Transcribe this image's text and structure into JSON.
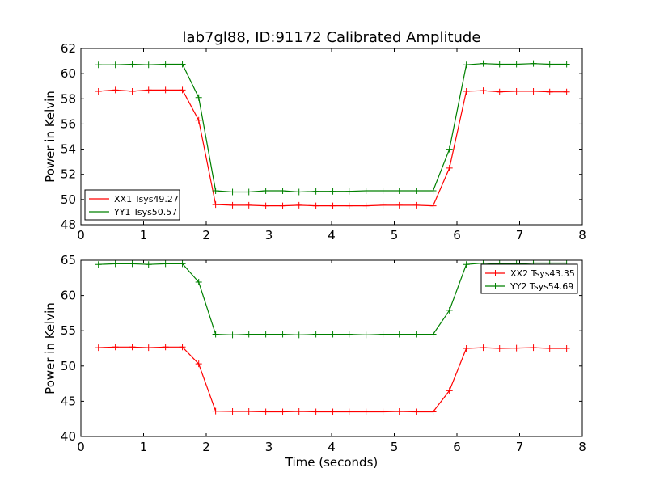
{
  "title": "lab7gl88, ID:91172 Calibrated Amplitude",
  "colors": {
    "xx": "#ff0000",
    "yy": "#008000"
  },
  "chart_data": [
    {
      "type": "line",
      "title": "lab7gl88, ID:91172 Calibrated Amplitude",
      "xlabel": "",
      "ylabel": "Power in Kelvin",
      "xlim": [
        0,
        8
      ],
      "ylim": [
        48,
        62
      ],
      "xticks": [
        0,
        1,
        2,
        3,
        4,
        5,
        6,
        7,
        8
      ],
      "yticks": [
        48,
        50,
        52,
        54,
        56,
        58,
        60,
        62
      ],
      "grid": false,
      "legend_position": "lower-left",
      "x": [
        0.28,
        0.55,
        0.82,
        1.08,
        1.35,
        1.62,
        1.88,
        2.15,
        2.42,
        2.68,
        2.95,
        3.22,
        3.48,
        3.75,
        4.02,
        4.28,
        4.55,
        4.82,
        5.08,
        5.35,
        5.62,
        5.88,
        6.15,
        6.42,
        6.68,
        6.95,
        7.22,
        7.48,
        7.75
      ],
      "series": [
        {
          "name": "XX1 Tsys49.27",
          "color": "#ff0000",
          "values": [
            58.6,
            58.7,
            58.6,
            58.7,
            58.7,
            58.7,
            56.3,
            49.6,
            49.55,
            49.55,
            49.5,
            49.5,
            49.55,
            49.5,
            49.5,
            49.5,
            49.5,
            49.55,
            49.55,
            49.55,
            49.5,
            52.5,
            58.6,
            58.65,
            58.55,
            58.6,
            58.6,
            58.55,
            58.55
          ]
        },
        {
          "name": "YY1 Tsys50.57",
          "color": "#008000",
          "values": [
            60.7,
            60.7,
            60.75,
            60.7,
            60.75,
            60.75,
            58.1,
            50.7,
            50.6,
            50.6,
            50.7,
            50.7,
            50.6,
            50.65,
            50.65,
            50.65,
            50.7,
            50.7,
            50.7,
            50.7,
            50.7,
            54.0,
            60.7,
            60.8,
            60.75,
            60.75,
            60.8,
            60.75,
            60.75
          ]
        }
      ]
    },
    {
      "type": "line",
      "title": "",
      "xlabel": "Time (seconds)",
      "ylabel": "Power in Kelvin",
      "xlim": [
        0,
        8
      ],
      "ylim": [
        40,
        65
      ],
      "xticks": [
        0,
        1,
        2,
        3,
        4,
        5,
        6,
        7,
        8
      ],
      "yticks": [
        40,
        45,
        50,
        55,
        60,
        65
      ],
      "grid": false,
      "legend_position": "upper-right",
      "x": [
        0.28,
        0.55,
        0.82,
        1.08,
        1.35,
        1.62,
        1.88,
        2.15,
        2.42,
        2.68,
        2.95,
        3.22,
        3.48,
        3.75,
        4.02,
        4.28,
        4.55,
        4.82,
        5.08,
        5.35,
        5.62,
        5.88,
        6.15,
        6.42,
        6.68,
        6.95,
        7.22,
        7.48,
        7.75
      ],
      "series": [
        {
          "name": "XX2 Tsys43.35",
          "color": "#ff0000",
          "values": [
            52.6,
            52.7,
            52.7,
            52.6,
            52.7,
            52.7,
            50.3,
            43.6,
            43.55,
            43.55,
            43.5,
            43.5,
            43.55,
            43.5,
            43.5,
            43.5,
            43.5,
            43.5,
            43.55,
            43.5,
            43.5,
            46.5,
            52.5,
            52.6,
            52.5,
            52.55,
            52.6,
            52.5,
            52.5
          ]
        },
        {
          "name": "YY2 Tsys54.69",
          "color": "#008000",
          "values": [
            64.4,
            64.5,
            64.5,
            64.4,
            64.5,
            64.5,
            61.9,
            54.5,
            54.4,
            54.5,
            54.5,
            54.5,
            54.4,
            54.5,
            54.5,
            54.5,
            54.4,
            54.5,
            54.5,
            54.5,
            54.5,
            57.9,
            64.4,
            64.6,
            64.5,
            64.5,
            64.6,
            64.6,
            64.6
          ]
        }
      ]
    }
  ]
}
